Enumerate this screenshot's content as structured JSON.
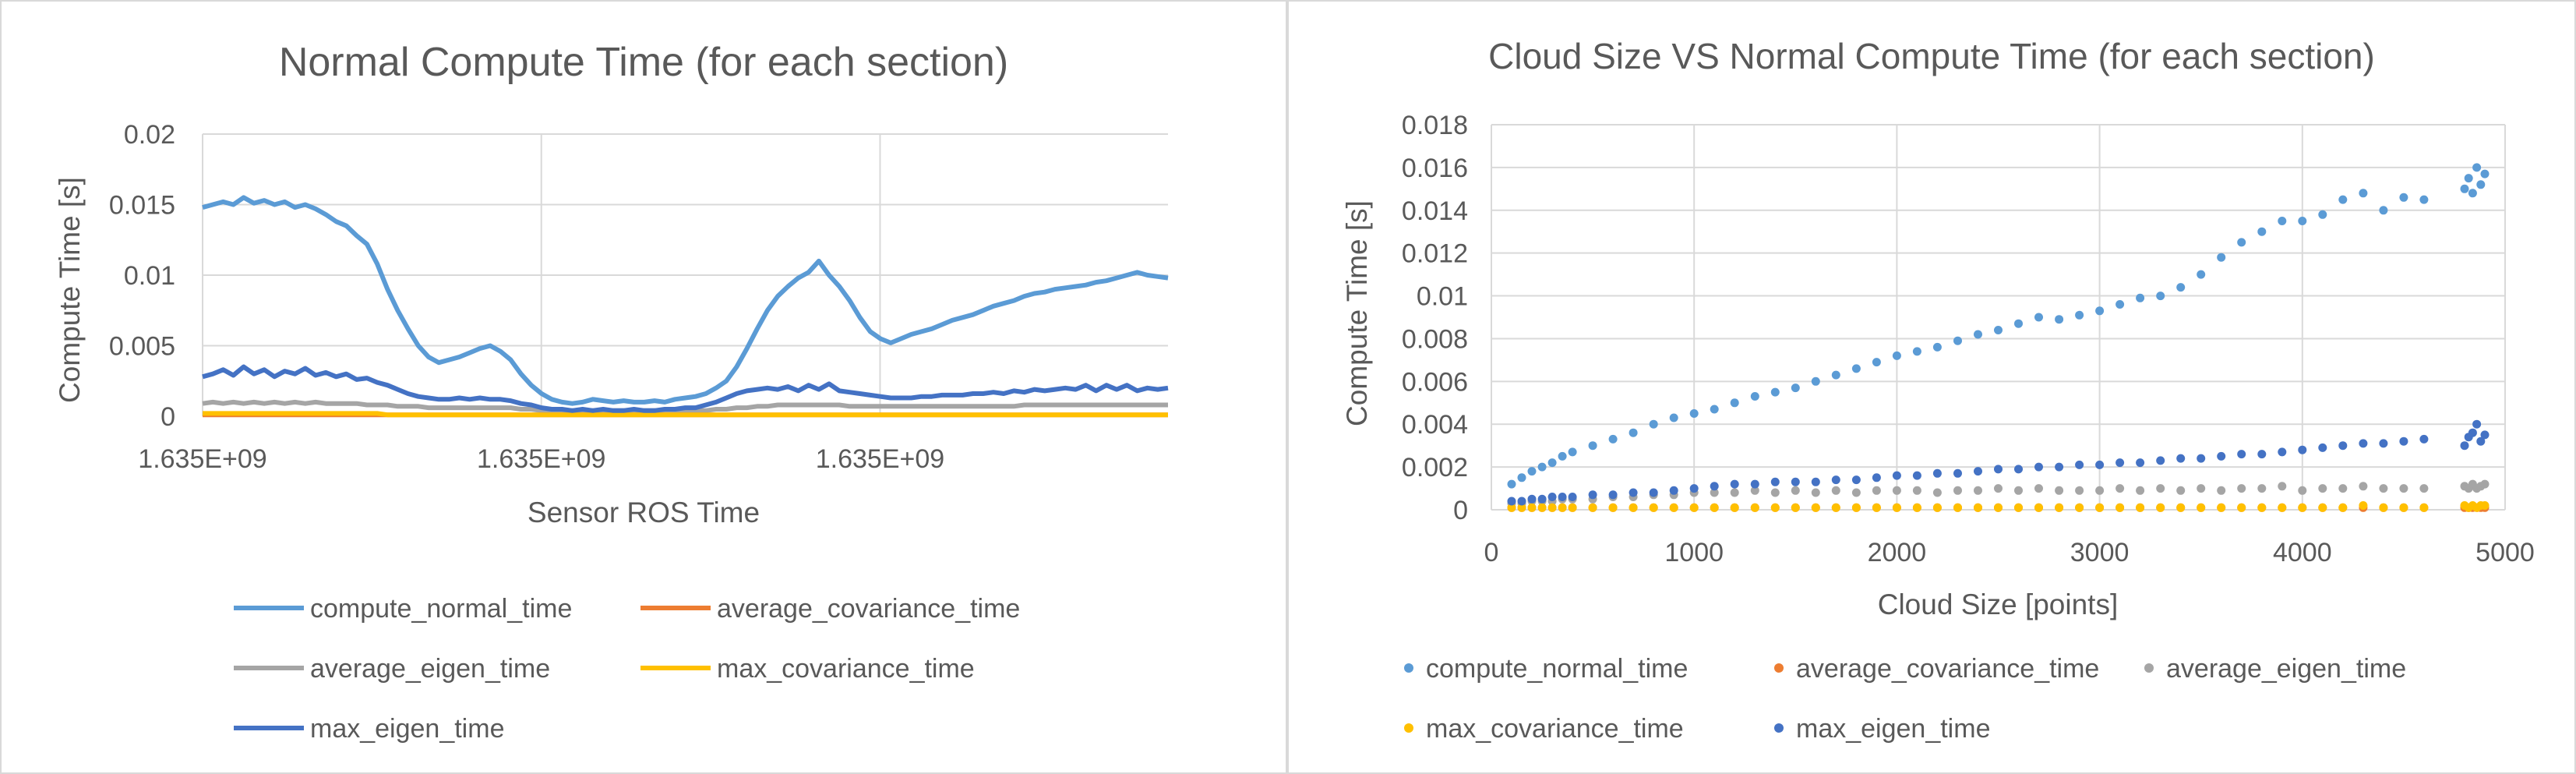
{
  "chart_data": [
    {
      "type": "line",
      "title": "Normal Compute Time (for each section)",
      "xlabel": "Sensor ROS Time",
      "ylabel": "Compute Time [s]",
      "x_tick_labels": [
        "1.635E+09",
        "1.635E+09",
        "1.635E+09"
      ],
      "y_ticks": [
        0,
        0.005,
        0.01,
        0.015,
        0.02
      ],
      "y_tick_labels": [
        "0",
        "0.005",
        "0.01",
        "0.015",
        "0.02"
      ],
      "ylim": [
        0,
        0.02
      ],
      "grid": true,
      "legend_position": "bottom",
      "x": [
        0,
        3,
        6,
        9,
        12,
        15,
        18,
        21,
        24,
        27,
        30,
        33,
        36,
        39,
        42,
        45,
        48,
        51,
        54,
        57,
        60,
        63,
        66,
        69,
        72,
        75,
        78,
        81,
        84,
        87,
        90,
        93,
        96,
        99,
        102,
        105,
        108,
        111,
        114,
        117,
        120,
        123,
        126,
        129,
        132,
        135,
        138,
        141,
        144,
        147,
        150,
        153,
        156,
        159,
        162,
        165,
        168,
        171,
        174,
        177,
        180,
        183,
        186,
        189,
        192,
        195,
        198,
        201,
        204,
        207,
        210,
        213,
        216,
        219,
        222,
        225,
        228,
        231,
        234,
        237,
        240,
        243,
        246,
        249,
        252,
        255,
        258,
        261,
        264,
        267,
        270,
        273,
        276,
        279,
        282
      ],
      "series": [
        {
          "name": "compute_normal_time",
          "color": "#5b9bd5",
          "values": [
            0.0148,
            0.015,
            0.0152,
            0.015,
            0.0155,
            0.0151,
            0.0153,
            0.015,
            0.0152,
            0.0148,
            0.015,
            0.0147,
            0.0143,
            0.0138,
            0.0135,
            0.0128,
            0.0122,
            0.0108,
            0.009,
            0.0075,
            0.0062,
            0.005,
            0.0042,
            0.0038,
            0.004,
            0.0042,
            0.0045,
            0.0048,
            0.005,
            0.0046,
            0.004,
            0.003,
            0.0022,
            0.0016,
            0.0012,
            0.001,
            0.0009,
            0.001,
            0.0012,
            0.0011,
            0.001,
            0.0011,
            0.001,
            0.001,
            0.0011,
            0.001,
            0.0012,
            0.0013,
            0.0014,
            0.0016,
            0.002,
            0.0025,
            0.0035,
            0.0048,
            0.0062,
            0.0075,
            0.0085,
            0.0092,
            0.0098,
            0.0102,
            0.011,
            0.01,
            0.0092,
            0.0082,
            0.007,
            0.006,
            0.0055,
            0.0052,
            0.0055,
            0.0058,
            0.006,
            0.0062,
            0.0065,
            0.0068,
            0.007,
            0.0072,
            0.0075,
            0.0078,
            0.008,
            0.0082,
            0.0085,
            0.0087,
            0.0088,
            0.009,
            0.0091,
            0.0092,
            0.0093,
            0.0095,
            0.0096,
            0.0098,
            0.01,
            0.0102,
            0.01,
            0.0099,
            0.0098
          ]
        },
        {
          "name": "average_covariance_time",
          "color": "#ed7d31",
          "values": [
            0.0001,
            0.0001,
            0.0001,
            0.0001,
            0.0001,
            0.0001,
            0.0001,
            0.0001,
            0.0001,
            0.0001,
            0.0001,
            0.0001,
            0.0001,
            0.0001,
            0.0001,
            0.0001,
            0.0001,
            0.0001,
            0.0001,
            0.0001,
            0.0001,
            0.0001,
            0.0001,
            0.0001,
            0.0001,
            0.0001,
            0.0001,
            0.0001,
            0.0001,
            0.0001,
            0.0001,
            0.0001,
            0.0001,
            0.0001,
            0.0001,
            0.0001,
            0.0001,
            0.0001,
            0.0001,
            0.0001,
            0.0001,
            0.0001,
            0.0001,
            0.0001,
            0.0001,
            0.0001,
            0.0001,
            0.0001,
            0.0001,
            0.0001,
            0.0001,
            0.0001,
            0.0001,
            0.0001,
            0.0001,
            0.0001,
            0.0001,
            0.0001,
            0.0001,
            0.0001,
            0.0001,
            0.0001,
            0.0001,
            0.0001,
            0.0001,
            0.0001,
            0.0001,
            0.0001,
            0.0001,
            0.0001,
            0.0001,
            0.0001,
            0.0001,
            0.0001,
            0.0001,
            0.0001,
            0.0001,
            0.0001,
            0.0001,
            0.0001,
            0.0001,
            0.0001,
            0.0001,
            0.0001,
            0.0001,
            0.0001,
            0.0001,
            0.0001,
            0.0001,
            0.0001,
            0.0001,
            0.0001,
            0.0001,
            0.0001,
            0.0001
          ]
        },
        {
          "name": "average_eigen_time",
          "color": "#a5a5a5",
          "values": [
            0.0009,
            0.001,
            0.0009,
            0.001,
            0.0009,
            0.001,
            0.0009,
            0.001,
            0.0009,
            0.001,
            0.0009,
            0.001,
            0.0009,
            0.0009,
            0.0009,
            0.0009,
            0.0008,
            0.0008,
            0.0008,
            0.0007,
            0.0007,
            0.0007,
            0.0006,
            0.0006,
            0.0006,
            0.0006,
            0.0006,
            0.0006,
            0.0006,
            0.0006,
            0.0006,
            0.0005,
            0.0005,
            0.0004,
            0.0004,
            0.0004,
            0.0004,
            0.0004,
            0.0004,
            0.0004,
            0.0004,
            0.0004,
            0.0004,
            0.0004,
            0.0004,
            0.0004,
            0.0004,
            0.0004,
            0.0004,
            0.0004,
            0.0005,
            0.0005,
            0.0006,
            0.0006,
            0.0007,
            0.0007,
            0.0008,
            0.0008,
            0.0008,
            0.0008,
            0.0008,
            0.0008,
            0.0008,
            0.0007,
            0.0007,
            0.0007,
            0.0007,
            0.0007,
            0.0007,
            0.0007,
            0.0007,
            0.0007,
            0.0007,
            0.0007,
            0.0007,
            0.0007,
            0.0007,
            0.0007,
            0.0007,
            0.0007,
            0.0008,
            0.0008,
            0.0008,
            0.0008,
            0.0008,
            0.0008,
            0.0008,
            0.0008,
            0.0008,
            0.0008,
            0.0008,
            0.0008,
            0.0008,
            0.0008,
            0.0008
          ]
        },
        {
          "name": "max_covariance_time",
          "color": "#ffc000",
          "values": [
            0.0002,
            0.0002,
            0.0002,
            0.0002,
            0.0002,
            0.0002,
            0.0002,
            0.0002,
            0.0002,
            0.0002,
            0.0002,
            0.0002,
            0.0002,
            0.0002,
            0.0002,
            0.0002,
            0.0002,
            0.0002,
            0.0001,
            0.0001,
            0.0001,
            0.0001,
            0.0001,
            0.0001,
            0.0001,
            0.0001,
            0.0001,
            0.0001,
            0.0001,
            0.0001,
            0.0001,
            0.0001,
            0.0001,
            0.0001,
            0.0001,
            0.0001,
            0.0001,
            0.0001,
            0.0001,
            0.0001,
            0.0001,
            0.0001,
            0.0001,
            0.0001,
            0.0001,
            0.0001,
            0.0001,
            0.0001,
            0.0001,
            0.0001,
            0.0001,
            0.0001,
            0.0001,
            0.0001,
            0.0001,
            0.0001,
            0.0001,
            0.0001,
            0.0001,
            0.0001,
            0.0001,
            0.0001,
            0.0001,
            0.0001,
            0.0001,
            0.0001,
            0.0001,
            0.0001,
            0.0001,
            0.0001,
            0.0001,
            0.0001,
            0.0001,
            0.0001,
            0.0001,
            0.0001,
            0.0001,
            0.0001,
            0.0001,
            0.0001,
            0.0001,
            0.0001,
            0.0001,
            0.0001,
            0.0001,
            0.0001,
            0.0001,
            0.0001,
            0.0001,
            0.0001,
            0.0001,
            0.0001,
            0.0001,
            0.0001,
            0.0001
          ]
        },
        {
          "name": "max_eigen_time",
          "color": "#4472c4",
          "values": [
            0.0028,
            0.003,
            0.0033,
            0.0029,
            0.0035,
            0.003,
            0.0033,
            0.0028,
            0.0032,
            0.003,
            0.0034,
            0.0029,
            0.0031,
            0.0028,
            0.003,
            0.0026,
            0.0027,
            0.0024,
            0.0022,
            0.0019,
            0.0016,
            0.0014,
            0.0013,
            0.0012,
            0.0012,
            0.0013,
            0.0012,
            0.0013,
            0.0012,
            0.0012,
            0.0011,
            0.0009,
            0.0008,
            0.0006,
            0.0005,
            0.0005,
            0.0004,
            0.0005,
            0.0004,
            0.0005,
            0.0004,
            0.0004,
            0.0005,
            0.0004,
            0.0004,
            0.0005,
            0.0005,
            0.0006,
            0.0006,
            0.0008,
            0.001,
            0.0013,
            0.0016,
            0.0018,
            0.0019,
            0.002,
            0.0019,
            0.0021,
            0.0018,
            0.0022,
            0.0019,
            0.0023,
            0.0018,
            0.0017,
            0.0016,
            0.0015,
            0.0014,
            0.0013,
            0.0013,
            0.0013,
            0.0014,
            0.0014,
            0.0015,
            0.0015,
            0.0015,
            0.0016,
            0.0016,
            0.0017,
            0.0016,
            0.0018,
            0.0017,
            0.0019,
            0.0018,
            0.0019,
            0.002,
            0.0019,
            0.0022,
            0.0018,
            0.0022,
            0.0019,
            0.0022,
            0.0018,
            0.002,
            0.0019,
            0.002
          ]
        }
      ]
    },
    {
      "type": "scatter",
      "title": "Cloud Size VS Normal Compute Time (for each section)",
      "xlabel": "Cloud Size [points]",
      "ylabel": "Compute Time [s]",
      "x_ticks": [
        0,
        1000,
        2000,
        3000,
        4000,
        5000
      ],
      "x_tick_labels": [
        "0",
        "1000",
        "2000",
        "3000",
        "4000",
        "5000"
      ],
      "y_ticks": [
        0,
        0.002,
        0.004,
        0.006,
        0.008,
        0.01,
        0.012,
        0.014,
        0.016,
        0.018
      ],
      "y_tick_labels": [
        "0",
        "0.002",
        "0.004",
        "0.006",
        "0.008",
        "0.01",
        "0.012",
        "0.014",
        "0.016",
        "0.018"
      ],
      "xlim": [
        0,
        5000
      ],
      "ylim": [
        0,
        0.018
      ],
      "grid": true,
      "legend_position": "bottom",
      "x": [
        100,
        150,
        200,
        250,
        300,
        350,
        400,
        500,
        600,
        700,
        800,
        900,
        1000,
        1100,
        1200,
        1300,
        1400,
        1500,
        1600,
        1700,
        1800,
        1900,
        2000,
        2100,
        2200,
        2300,
        2400,
        2500,
        2600,
        2700,
        2800,
        2900,
        3000,
        3100,
        3200,
        3300,
        3400,
        3500,
        3600,
        3700,
        3800,
        3900,
        4000,
        4100,
        4200,
        4300,
        4400,
        4500,
        4600,
        4800,
        4820,
        4840,
        4860,
        4880,
        4900
      ],
      "series": [
        {
          "name": "compute_normal_time",
          "color": "#5b9bd5",
          "values": [
            0.0012,
            0.0015,
            0.0018,
            0.002,
            0.0022,
            0.0025,
            0.0027,
            0.003,
            0.0033,
            0.0036,
            0.004,
            0.0043,
            0.0045,
            0.0047,
            0.005,
            0.0053,
            0.0055,
            0.0057,
            0.006,
            0.0063,
            0.0066,
            0.0069,
            0.0072,
            0.0074,
            0.0076,
            0.0079,
            0.0082,
            0.0084,
            0.0087,
            0.009,
            0.0089,
            0.0091,
            0.0093,
            0.0096,
            0.0099,
            0.01,
            0.0104,
            0.011,
            0.0118,
            0.0125,
            0.013,
            0.0135,
            0.0135,
            0.0138,
            0.0145,
            0.0148,
            0.014,
            0.0146,
            0.0145,
            0.015,
            0.0155,
            0.0148,
            0.016,
            0.0152,
            0.0157
          ]
        },
        {
          "name": "average_covariance_time",
          "color": "#ed7d31",
          "values": [
            0.0001,
            0.0001,
            0.0001,
            0.0001,
            0.0001,
            0.0001,
            0.0001,
            0.0001,
            0.0001,
            0.0001,
            0.0001,
            0.0001,
            0.0001,
            0.0001,
            0.0001,
            0.0001,
            0.0001,
            0.0001,
            0.0001,
            0.0001,
            0.0001,
            0.0001,
            0.0001,
            0.0001,
            0.0001,
            0.0001,
            0.0001,
            0.0001,
            0.0001,
            0.0001,
            0.0001,
            0.0001,
            0.0001,
            0.0001,
            0.0001,
            0.0001,
            0.0001,
            0.0001,
            0.0001,
            0.0001,
            0.0001,
            0.0001,
            0.0001,
            0.0001,
            0.0001,
            0.0001,
            0.0001,
            0.0001,
            0.0001,
            0.0001,
            0.0001,
            0.0001,
            0.0001,
            0.0001,
            0.0001
          ]
        },
        {
          "name": "average_eigen_time",
          "color": "#a5a5a5",
          "values": [
            0.0003,
            0.0003,
            0.0004,
            0.0004,
            0.0004,
            0.0005,
            0.0005,
            0.0005,
            0.0006,
            0.0006,
            0.0007,
            0.0007,
            0.0008,
            0.0008,
            0.0008,
            0.0009,
            0.0008,
            0.0009,
            0.0008,
            0.0009,
            0.0008,
            0.0009,
            0.0009,
            0.0009,
            0.0008,
            0.0009,
            0.0009,
            0.001,
            0.0009,
            0.001,
            0.0009,
            0.0009,
            0.0009,
            0.001,
            0.0009,
            0.001,
            0.0009,
            0.001,
            0.0009,
            0.001,
            0.001,
            0.0011,
            0.0009,
            0.001,
            0.001,
            0.0011,
            0.001,
            0.001,
            0.001,
            0.0011,
            0.001,
            0.0012,
            0.001,
            0.0011,
            0.0012
          ]
        },
        {
          "name": "max_covariance_time",
          "color": "#ffc000",
          "values": [
            0.0001,
            0.0001,
            0.0001,
            0.0001,
            0.0001,
            0.0001,
            0.0001,
            0.0001,
            0.0001,
            0.0001,
            0.0001,
            0.0001,
            0.0001,
            0.0001,
            0.0001,
            0.0001,
            0.0001,
            0.0001,
            0.0001,
            0.0001,
            0.0001,
            0.0001,
            0.0001,
            0.0001,
            0.0001,
            0.0001,
            0.0001,
            0.0001,
            0.0001,
            0.0001,
            0.0001,
            0.0001,
            0.0001,
            0.0001,
            0.0001,
            0.0001,
            0.0001,
            0.0001,
            0.0001,
            0.0001,
            0.0001,
            0.0001,
            0.0001,
            0.0001,
            0.0001,
            0.0002,
            0.0001,
            0.0001,
            0.0001,
            0.0002,
            0.0001,
            0.0002,
            0.0001,
            0.0002,
            0.0002
          ]
        },
        {
          "name": "max_eigen_time",
          "color": "#4472c4",
          "values": [
            0.0004,
            0.0004,
            0.0005,
            0.0005,
            0.0006,
            0.0006,
            0.0006,
            0.0007,
            0.0007,
            0.0008,
            0.0008,
            0.0009,
            0.001,
            0.0011,
            0.0012,
            0.0012,
            0.0013,
            0.0013,
            0.0013,
            0.0014,
            0.0014,
            0.0015,
            0.0016,
            0.0016,
            0.0017,
            0.0017,
            0.0018,
            0.0019,
            0.0019,
            0.002,
            0.002,
            0.0021,
            0.0021,
            0.0022,
            0.0022,
            0.0023,
            0.0024,
            0.0024,
            0.0025,
            0.0026,
            0.0026,
            0.0027,
            0.0028,
            0.0029,
            0.003,
            0.0031,
            0.0031,
            0.0032,
            0.0033,
            0.003,
            0.0034,
            0.0036,
            0.004,
            0.0032,
            0.0035
          ]
        }
      ]
    }
  ]
}
